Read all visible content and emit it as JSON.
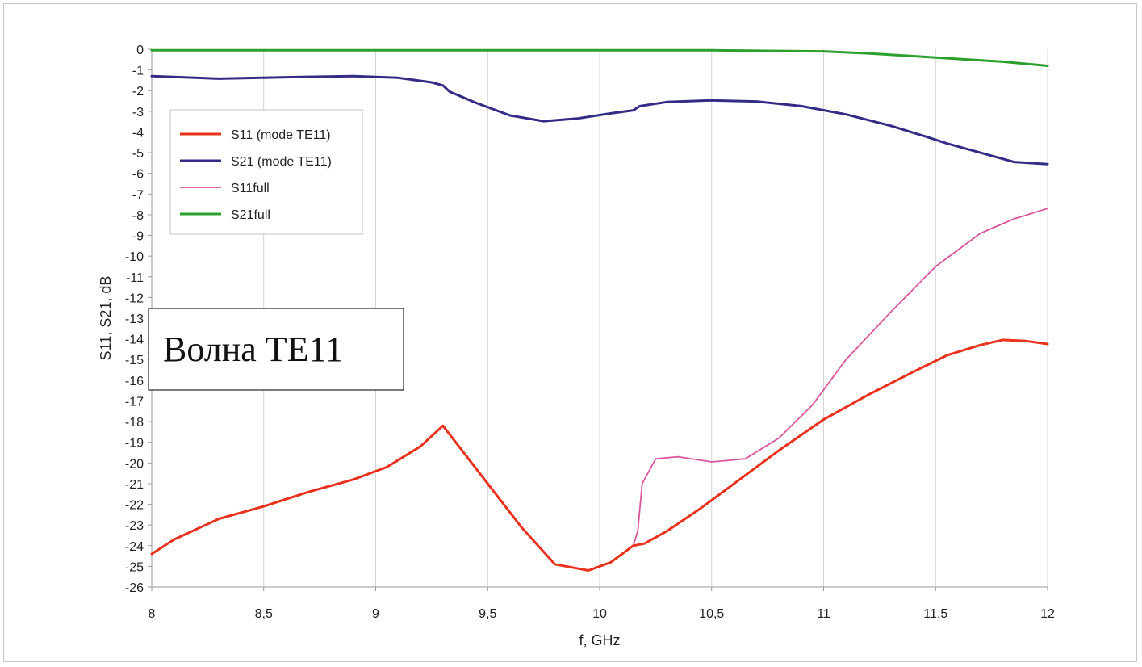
{
  "chart_data": {
    "type": "line",
    "title": "",
    "xlabel": "f, GHz",
    "ylabel": "S11, S21, dB",
    "xlim": [
      8,
      12
    ],
    "ylim": [
      -26,
      0
    ],
    "x_ticks": [
      8,
      8.5,
      9,
      9.5,
      10,
      10.5,
      11,
      11.5,
      12
    ],
    "x_tick_labels": [
      "8",
      "8,5",
      "9",
      "9,5",
      "10",
      "10,5",
      "11",
      "11,5",
      "12"
    ],
    "y_ticks": [
      0,
      -1,
      -2,
      -3,
      -4,
      -5,
      -6,
      -7,
      -8,
      -9,
      -10,
      -11,
      -12,
      -13,
      -14,
      -15,
      -16,
      -17,
      -18,
      -19,
      -20,
      -21,
      -22,
      -23,
      -24,
      -25,
      -26
    ],
    "grid": "vertical",
    "legend": "top-left",
    "annotation": "Волна TE11",
    "series": [
      {
        "name": "S21full",
        "color": "#2ca02c",
        "x": [
          8,
          9,
          9.5,
          10,
          10.5,
          11,
          11.2,
          11.5,
          11.8,
          12
        ],
        "y": [
          -0.05,
          -0.05,
          -0.05,
          -0.05,
          -0.05,
          -0.1,
          -0.2,
          -0.4,
          -0.6,
          -0.8
        ]
      },
      {
        "name": "S21 (mode TE11)",
        "color": "#332c85",
        "x": [
          8,
          8.3,
          8.6,
          8.9,
          9.1,
          9.25,
          9.3,
          9.33,
          9.45,
          9.6,
          9.75,
          9.9,
          10.05,
          10.15,
          10.18,
          10.3,
          10.5,
          10.7,
          10.9,
          11.1,
          11.3,
          11.45,
          11.55,
          11.7,
          11.85,
          12
        ],
        "y": [
          -1.3,
          -1.42,
          -1.35,
          -1.3,
          -1.38,
          -1.6,
          -1.75,
          -2.05,
          -2.6,
          -3.2,
          -3.48,
          -3.35,
          -3.1,
          -2.95,
          -2.75,
          -2.55,
          -2.47,
          -2.52,
          -2.75,
          -3.15,
          -3.7,
          -4.2,
          -4.55,
          -5.0,
          -5.45,
          -5.55
        ]
      },
      {
        "name": "S11full",
        "color": "#d9559e",
        "x": [
          8,
          8.1,
          8.3,
          8.5,
          8.7,
          8.9,
          9.05,
          9.2,
          9.3,
          9.35,
          9.5,
          9.65,
          9.8,
          9.95,
          10.05,
          10.15,
          10.17,
          10.19,
          10.25,
          10.35,
          10.5,
          10.65,
          10.8,
          10.95,
          11.1,
          11.3,
          11.5,
          11.7,
          11.85,
          12
        ],
        "y": [
          -24.4,
          -23.7,
          -22.7,
          -22.1,
          -21.4,
          -20.8,
          -20.2,
          -19.2,
          -18.2,
          -18.9,
          -21.0,
          -23.1,
          -24.9,
          -25.2,
          -24.8,
          -24.0,
          -23.3,
          -21.0,
          -19.8,
          -19.7,
          -19.95,
          -19.8,
          -18.8,
          -17.2,
          -15.0,
          -12.7,
          -10.5,
          -8.9,
          -8.2,
          -7.7
        ]
      },
      {
        "name": "S11 (mode TE11)",
        "color": "#e8321e",
        "x": [
          8,
          8.1,
          8.3,
          8.5,
          8.7,
          8.9,
          9.05,
          9.2,
          9.3,
          9.35,
          9.5,
          9.65,
          9.8,
          9.95,
          10.05,
          10.15,
          10.2,
          10.3,
          10.45,
          10.6,
          10.8,
          11,
          11.2,
          11.4,
          11.55,
          11.7,
          11.8,
          11.9,
          12
        ],
        "y": [
          -24.4,
          -23.7,
          -22.7,
          -22.1,
          -21.4,
          -20.8,
          -20.2,
          -19.2,
          -18.2,
          -18.9,
          -21.0,
          -23.1,
          -24.9,
          -25.2,
          -24.8,
          -24.0,
          -23.9,
          -23.3,
          -22.2,
          -21.0,
          -19.4,
          -17.9,
          -16.7,
          -15.6,
          -14.8,
          -14.3,
          -14.05,
          -14.1,
          -14.25
        ]
      }
    ],
    "legend_order": [
      "S11 (mode TE11)",
      "S21 (mode TE11)",
      "S11full",
      "S21full"
    ]
  }
}
